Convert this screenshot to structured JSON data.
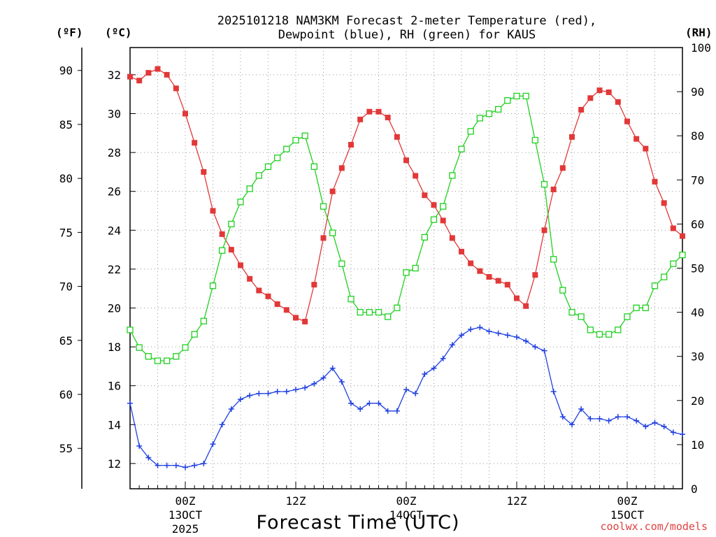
{
  "title": {
    "line1": "2025101218 NAM3KM Forecast 2-meter Temperature (red),",
    "line2": "Dewpoint (blue), RH (green) for KAUS"
  },
  "units": {
    "fahrenheit": "(ºF)",
    "celsius": "(ºC)",
    "rh": "(RH)"
  },
  "credit": "coolwx.com/models",
  "colors": {
    "temperature": "#e23838",
    "dewpoint": "#2040e0",
    "rh": "#20d020"
  },
  "chart_data": {
    "type": "line",
    "title": "2025101218 NAM3KM Forecast 2-meter Temperature (red), Dewpoint (blue), RH (green) for KAUS",
    "xlabel": "Forecast Time (UTC)",
    "ylabel_left": "(ºF)",
    "ylabel_left2": "(ºC)",
    "ylabel_right": "(RH)",
    "forecast_hours": [
      0,
      1,
      2,
      3,
      4,
      5,
      6,
      7,
      8,
      9,
      10,
      11,
      12,
      13,
      14,
      15,
      16,
      17,
      18,
      19,
      20,
      21,
      22,
      23,
      24,
      25,
      26,
      27,
      28,
      29,
      30,
      31,
      32,
      33,
      34,
      35,
      36,
      37,
      38,
      39,
      40,
      41,
      42,
      43,
      44,
      45,
      46,
      47,
      48,
      49,
      50,
      51,
      52,
      53,
      54,
      55,
      56,
      57,
      58,
      59,
      60
    ],
    "xlim": [
      0,
      60
    ],
    "x_ticks": [
      {
        "hour": 6,
        "label": "00Z",
        "sub": "13OCT",
        "sub2": "2025"
      },
      {
        "hour": 18,
        "label": "12Z",
        "sub": "",
        "sub2": ""
      },
      {
        "hour": 30,
        "label": "00Z",
        "sub": "14OCT",
        "sub2": ""
      },
      {
        "hour": 42,
        "label": "12Z",
        "sub": "",
        "sub2": ""
      },
      {
        "hour": 54,
        "label": "00Z",
        "sub": "15OCT",
        "sub2": ""
      }
    ],
    "y_celsius": {
      "range": [
        10.7,
        33.4
      ],
      "ticks": [
        12,
        14,
        16,
        18,
        20,
        22,
        24,
        26,
        28,
        30,
        32
      ]
    },
    "y_fahrenheit": {
      "ticks": [
        55,
        60,
        65,
        70,
        75,
        80,
        85,
        90
      ]
    },
    "y_rh": {
      "range": [
        0,
        100
      ],
      "ticks": [
        0,
        10,
        20,
        30,
        40,
        50,
        60,
        70,
        80,
        90,
        100
      ]
    },
    "series": [
      {
        "name": "Temperature",
        "units": "°C",
        "color": "#e23838",
        "marker": "filled-square",
        "values": [
          31.9,
          31.7,
          32.1,
          32.3,
          32.0,
          31.3,
          30.0,
          28.5,
          27.0,
          25.0,
          23.8,
          23.0,
          22.2,
          21.5,
          20.9,
          20.6,
          20.2,
          19.9,
          19.5,
          19.3,
          21.2,
          23.6,
          26.0,
          27.2,
          28.4,
          29.7,
          30.1,
          30.1,
          29.8,
          28.8,
          27.6,
          26.8,
          25.8,
          25.3,
          24.5,
          23.6,
          22.9,
          22.3,
          21.9,
          21.6,
          21.4,
          21.2,
          20.5,
          20.1,
          21.7,
          24.0,
          26.1,
          27.2,
          28.8,
          30.2,
          30.8,
          31.2,
          31.1,
          30.6,
          29.6,
          28.7,
          28.2,
          26.5,
          25.4,
          24.1,
          23.7
        ]
      },
      {
        "name": "Dewpoint",
        "units": "°C",
        "color": "#2040e0",
        "marker": "plus",
        "values": [
          15.1,
          12.9,
          12.3,
          11.9,
          11.9,
          11.9,
          11.8,
          11.9,
          12.0,
          13.0,
          14.0,
          14.8,
          15.3,
          15.5,
          15.6,
          15.6,
          15.7,
          15.7,
          15.8,
          15.9,
          16.1,
          16.4,
          16.9,
          16.2,
          15.1,
          14.8,
          15.1,
          15.1,
          14.7,
          14.7,
          15.8,
          15.6,
          16.6,
          16.9,
          17.4,
          18.1,
          18.6,
          18.9,
          19.0,
          18.8,
          18.7,
          18.6,
          18.5,
          18.3,
          18.0,
          17.8,
          15.7,
          14.4,
          14.0,
          14.8,
          14.3,
          14.3,
          14.2,
          14.4,
          14.4,
          14.2,
          13.9,
          14.1,
          13.9,
          13.6,
          13.5
        ]
      },
      {
        "name": "RH",
        "units": "%",
        "color": "#20d020",
        "marker": "open-square",
        "values": [
          36,
          32,
          30,
          29,
          29,
          30,
          32,
          35,
          38,
          46,
          54,
          60,
          65,
          68,
          71,
          73,
          75,
          77,
          79,
          80,
          73,
          64,
          58,
          51,
          43,
          40,
          40,
          40,
          39,
          41,
          49,
          50,
          57,
          61,
          64,
          71,
          77,
          81,
          84,
          85,
          86,
          88,
          89,
          89,
          79,
          69,
          52,
          45,
          40,
          39,
          36,
          35,
          35,
          36,
          39,
          41,
          41,
          46,
          48,
          51,
          53
        ]
      }
    ]
  }
}
